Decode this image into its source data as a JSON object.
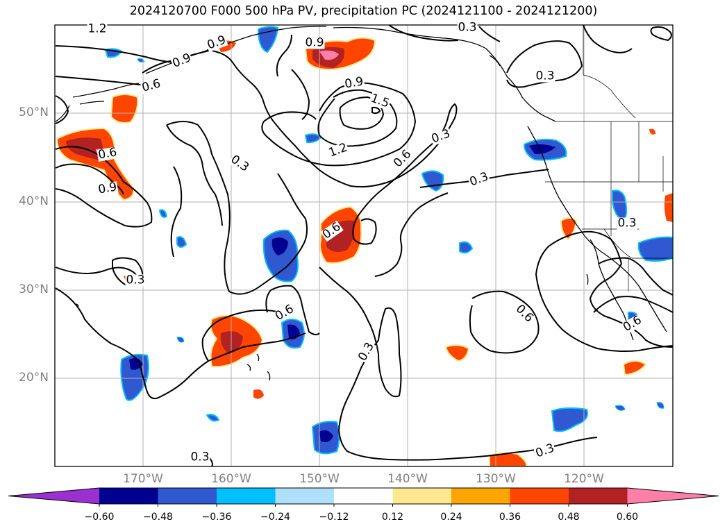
{
  "title": "2024120700 F000 500 hPa PV, precipitation PC (2024121100 - 2024121200)",
  "lat_labels": [
    "50°N",
    "40°N",
    "30°N",
    "20°N"
  ],
  "lon_labels": [
    "170°W",
    "160°W",
    "150°W",
    "140°W",
    "130°W",
    "120°W"
  ],
  "contour_labels": [
    "1.2",
    "0.9",
    "0.6",
    "0.9",
    "0.6",
    "0.9",
    "1.5",
    "1.2",
    "0.9",
    "0.6",
    "0.3",
    "0.6",
    "0.3",
    "0.9",
    "0.3",
    "0.6",
    "0.3",
    "0.6",
    "0.3",
    "0.3",
    "0.3",
    "0.3",
    "0.6",
    "0.3",
    "0.3"
  ],
  "colorbar": {
    "tick_labels": [
      "−0.60",
      "−0.48",
      "−0.36",
      "−0.24",
      "−0.12",
      "0.12",
      "0.24",
      "0.36",
      "0.48",
      "0.60"
    ],
    "colors": [
      "#9b30d0",
      "#000090",
      "#3058d0",
      "#00bfff",
      "#aee0fa",
      "#ffffff",
      "#ffe890",
      "#ffa500",
      "#ff4500",
      "#b22222",
      "#ff7fa8"
    ]
  },
  "colors": {
    "grid": "#b0b0b0",
    "contour": "#000000",
    "coast": "#000000"
  }
}
